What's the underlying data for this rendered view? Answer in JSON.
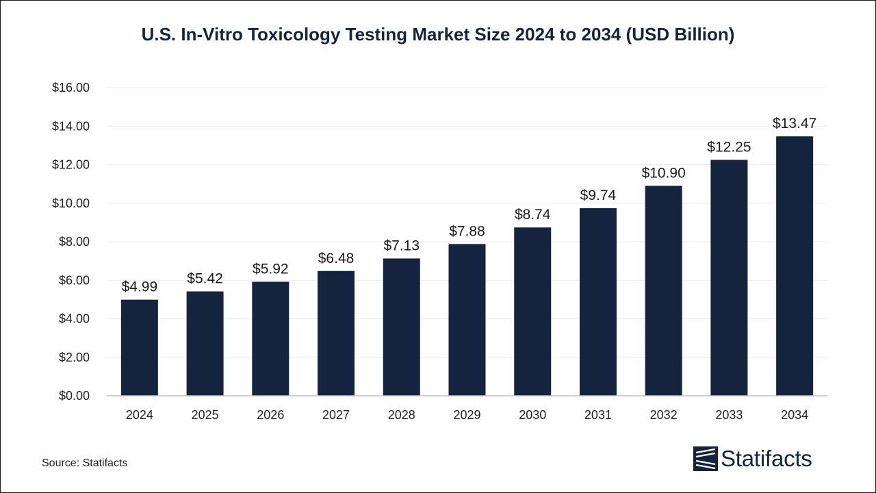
{
  "chart_data": {
    "type": "bar",
    "title": "U.S. In-Vitro Toxicology Testing Market Size 2024 to 2034 (USD Billion)",
    "xlabel": "",
    "ylabel": "",
    "categories": [
      "2024",
      "2025",
      "2026",
      "2027",
      "2028",
      "2029",
      "2030",
      "2031",
      "2032",
      "2033",
      "2034"
    ],
    "values": [
      4.99,
      5.42,
      5.92,
      6.48,
      7.13,
      7.88,
      8.74,
      9.74,
      10.9,
      12.25,
      13.47
    ],
    "data_labels": [
      "$4.99",
      "$5.42",
      "$5.92",
      "$6.48",
      "$7.13",
      "$7.88",
      "$8.74",
      "$9.74",
      "$10.90",
      "$12.25",
      "$13.47"
    ],
    "yticks": [
      0,
      2,
      4,
      6,
      8,
      10,
      12,
      14,
      16
    ],
    "ytick_labels": [
      "$0.00",
      "$2.00",
      "$4.00",
      "$6.00",
      "$8.00",
      "$10.00",
      "$12.00",
      "$14.00",
      "$16.00"
    ],
    "ylim": [
      0,
      16
    ],
    "grid": true,
    "legend": "none",
    "bar_color": "#14243e"
  },
  "footer": {
    "source": "Source: Statifacts",
    "brand": "Statifacts"
  }
}
